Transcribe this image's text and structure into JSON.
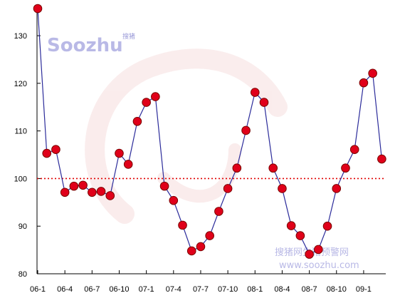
{
  "colors": {
    "line": "#2b2b9a",
    "marker_fill": "#e0001a",
    "marker_stroke": "#7a0000",
    "reference_line": "#e00000",
    "axis": "#000000",
    "watermark_text": "#b9b9e6",
    "watermark_logo": "#f6dede"
  },
  "watermark": {
    "logo_text": "Soozhu",
    "logo_cn": "搜猪",
    "line1": "搜猪网生猪预警网",
    "line2": "www.soozhu.com"
  },
  "chart_data": {
    "type": "line",
    "title": "",
    "xlabel": "",
    "ylabel": "",
    "ylim": [
      80,
      136
    ],
    "y_ticks": [
      80,
      90,
      100,
      110,
      120,
      130
    ],
    "x_range": [
      0,
      38.5
    ],
    "x_tick_labels": [
      {
        "x": 0,
        "label": "06-1"
      },
      {
        "x": 3,
        "label": "06-4"
      },
      {
        "x": 6,
        "label": "06-7"
      },
      {
        "x": 9,
        "label": "06-10"
      },
      {
        "x": 12,
        "label": "07-1"
      },
      {
        "x": 15,
        "label": "07-4"
      },
      {
        "x": 18,
        "label": "07-7"
      },
      {
        "x": 21,
        "label": "07-10"
      },
      {
        "x": 24,
        "label": "08-1"
      },
      {
        "x": 27,
        "label": "08-4"
      },
      {
        "x": 30,
        "label": "08-7"
      },
      {
        "x": 33,
        "label": "08-10"
      },
      {
        "x": 36,
        "label": "09-1"
      }
    ],
    "reference_line": {
      "y": 100,
      "style": "dotted"
    },
    "grid": false,
    "series": [
      {
        "x": [
          0,
          1,
          2,
          3,
          4,
          5,
          6,
          7,
          8,
          9,
          10,
          11,
          12,
          13,
          14,
          15,
          16,
          17,
          18,
          19,
          20,
          21,
          22,
          23,
          24,
          25,
          26,
          27,
          28,
          29,
          30,
          31,
          32,
          33,
          34,
          35,
          36,
          37,
          38
        ],
        "values": [
          135.7,
          105.3,
          106.1,
          97.1,
          98.4,
          98.6,
          97.1,
          97.3,
          96.4,
          105.3,
          103.0,
          112.0,
          116.0,
          117.2,
          98.4,
          95.4,
          90.2,
          84.8,
          85.7,
          88.0,
          93.1,
          97.9,
          102.2,
          110.1,
          118.1,
          116.0,
          102.2,
          97.9,
          90.1,
          88.0,
          84.1,
          85.1,
          90.0,
          97.9,
          102.2,
          106.1,
          120.1,
          122.1,
          104.1
        ]
      }
    ]
  }
}
